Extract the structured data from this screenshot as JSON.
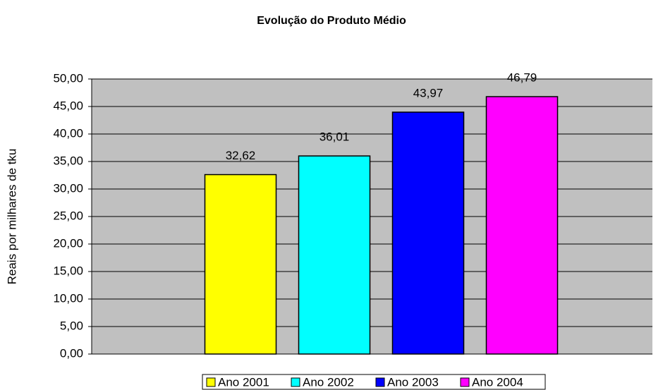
{
  "chart_data": {
    "type": "bar",
    "title": "Evolução do Produto Médio",
    "y_label": "Reais por milhares de tku",
    "categories": [
      null
    ],
    "series": [
      {
        "name": "Ano 2001",
        "color": "#ffff00",
        "values": [
          32.62
        ],
        "value_labels": [
          "32,62"
        ]
      },
      {
        "name": "Ano 2002",
        "color": "#00ffff",
        "values": [
          36.01
        ],
        "value_labels": [
          "36,01"
        ]
      },
      {
        "name": "Ano 2003",
        "color": "#0000ff",
        "values": [
          43.97
        ],
        "value_labels": [
          "43,97"
        ]
      },
      {
        "name": "Ano 2004",
        "color": "#ff00ff",
        "values": [
          46.79
        ],
        "value_labels": [
          "46,79"
        ]
      }
    ],
    "ylim": [
      0,
      50
    ],
    "yticks": [
      {
        "value": 0,
        "label": "0,00"
      },
      {
        "value": 5,
        "label": "5,00"
      },
      {
        "value": 10,
        "label": "10,00"
      },
      {
        "value": 15,
        "label": "15,00"
      },
      {
        "value": 20,
        "label": "20,00"
      },
      {
        "value": 25,
        "label": "25,00"
      },
      {
        "value": 30,
        "label": "30,00"
      },
      {
        "value": 35,
        "label": "35,00"
      },
      {
        "value": 40,
        "label": "40,00"
      },
      {
        "value": 45,
        "label": "45,00"
      },
      {
        "value": 50,
        "label": "50,00"
      }
    ],
    "grid": true,
    "plot_background": "#c0c0c0",
    "legend": "bottom"
  }
}
